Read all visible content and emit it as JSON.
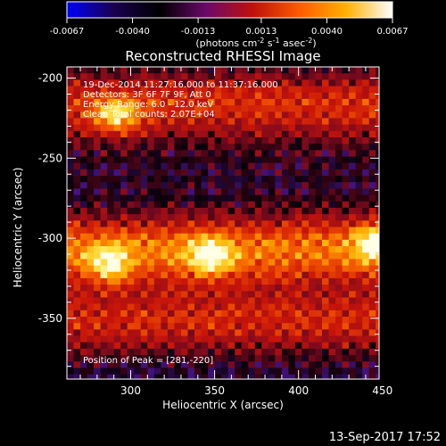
{
  "colorbar": {
    "tick_labels": [
      "-0.0067",
      "-0.0040",
      "-0.0013",
      "0.0013",
      "0.0040",
      "0.0067"
    ],
    "tick_values": [
      -0.0067,
      -0.004,
      -0.0013,
      0.0013,
      0.004,
      0.0067
    ],
    "range": [
      -0.0067,
      0.0067
    ],
    "unit_prefix": "(photons cm",
    "unit_exp1": "-2",
    "unit_mid": " s",
    "unit_exp2": "-1",
    "unit_mid2": " asec",
    "unit_exp3": "-2",
    "unit_suffix": ")",
    "colors": [
      "#0000ff",
      "#1a0050",
      "#000000",
      "#6a0a6a",
      "#c0100a",
      "#ff5a00",
      "#ffb000",
      "#ffffff"
    ]
  },
  "image": {
    "title": "Reconstructed RHESSI Image",
    "annotations": [
      "19-Dec-2014 11:27:16.000 to 11:37:16.000",
      "Detectors: 3F 6F 7F 9F, Att 0",
      "Energy Range: 6.0 - 12.0 keV",
      "Clean     Total counts: 2.07E+04"
    ],
    "peak_label": "Position of Peak = [281,-220]",
    "xlabel": "Heliocentric X (arcsec)",
    "ylabel": "Heliocentric Y (arcsec)",
    "xlim": [
      262,
      448
    ],
    "ylim": [
      -388,
      -193
    ],
    "x_ticks": [
      300,
      350,
      400,
      450
    ],
    "y_ticks": [
      -200,
      -250,
      -300,
      -350
    ],
    "x_tick_labels": [
      "300",
      "350",
      "400",
      "450"
    ],
    "y_tick_labels": [
      "-200",
      "-250",
      "-300",
      "-350"
    ],
    "x_minor_step": 10,
    "y_minor_step": 10,
    "bands": [
      {
        "y_center": -215,
        "intensity": 0.55
      },
      {
        "y_center": -255,
        "intensity": 0.08
      },
      {
        "y_center": -305,
        "intensity": 0.75
      },
      {
        "y_center": -350,
        "intensity": 0.5
      }
    ],
    "peaks": [
      {
        "x": 345,
        "y": -310,
        "value": 0.95
      },
      {
        "x": 445,
        "y": -300,
        "value": 0.95
      },
      {
        "x": 285,
        "y": -315,
        "value": 0.85
      },
      {
        "x": 290,
        "y": -222,
        "value": 0.9
      }
    ]
  },
  "timestamp": "13-Sep-2017 17:52"
}
